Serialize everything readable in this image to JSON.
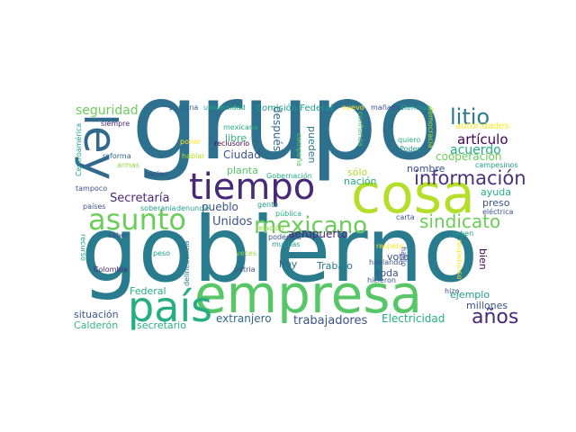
{
  "words": {
    "grupo": "grupo",
    "gobierno": "gobierno",
    "empresa": "empresa",
    "cosa": "cosa",
    "pais": "país",
    "tiempo": "tiempo",
    "ley": "ley",
    "asunto": "asunto",
    "mexicano": "mexicano",
    "litio": "litio",
    "informacion": "información",
    "sindicato": "sindicato",
    "anos": "años",
    "seguridad": "seguridad",
    "articulo": "artículo",
    "acuerdo": "acuerdo",
    "cooperacion": "cooperación",
    "secretaria": "Secretaría",
    "ciudad": "Ciudad",
    "unidos": "Unidos",
    "pueblo": "pueblo",
    "aeropuerto": "aeropuerto",
    "trabajadores": "trabajadores",
    "electricidad": "Electricidad",
    "extranjero": "extranjero",
    "situacion": "situación",
    "calderon": "Calderón",
    "secretario": "secretario",
    "federal": "Federal",
    "hoy": "hoy",
    "trabajo": "Trabajo",
    "toda": "toda",
    "voto": "voto",
    "ejemplo": "ejemplo",
    "millones": "millones",
    "bien": "bien",
    "preso": "preso",
    "ayuda": "ayuda",
    "nombre": "nombre",
    "sólo": "sólo",
    "nacion": "nación",
    "planta": "planta",
    "libre": "libre",
    "despues": "después",
    "pueden": "pueden",
    "autoridades": "autoridades",
    "comision_federal": "Comisión Federal",
    "persona": "persona",
    "universidad": "universidad",
    "nuevo": "nuevo",
    "manana": "mañana",
    "atencion": "atención",
    "siempre": "siempre",
    "mexicana": "mexicana",
    "reclusorio": "reclusorio",
    "campana": "campaña",
    "confianza": "confianza",
    "quiero": "quiero",
    "poder": "Poder",
    "democracia": "democracia",
    "campesinos": "campesinos",
    "poner": "poner",
    "hablar": "hablar",
    "reforma": "reforma",
    "armas": "armas",
    "centroamerica": "Centroamérica",
    "hacian": "hacían",
    "tampoco": "tampoco",
    "gobernacion": "Gobernación",
    "paises": "países",
    "soberania": "soberanía",
    "denuncie": "denuncié",
    "gente": "gente",
    "publica": "pública",
    "carta": "carta",
    "relacion": "relación",
    "podemos": "podemos",
    "muchas": "muchas",
    "respeto": "respeto",
    "saben": "saben",
    "electrica": "eléctrica",
    "recurso": "recurso",
    "saber": "saber",
    "delincuencia": "delincuencia",
    "peso": "peso",
    "colombia": "Colombia",
    "patria": "patria",
    "veces": "veces",
    "hablo": "hablo",
    "hablando": "hablando",
    "hicieron": "hicieron",
    "respetuoso": "respetuoso",
    "hizo": "hizo"
  }
}
